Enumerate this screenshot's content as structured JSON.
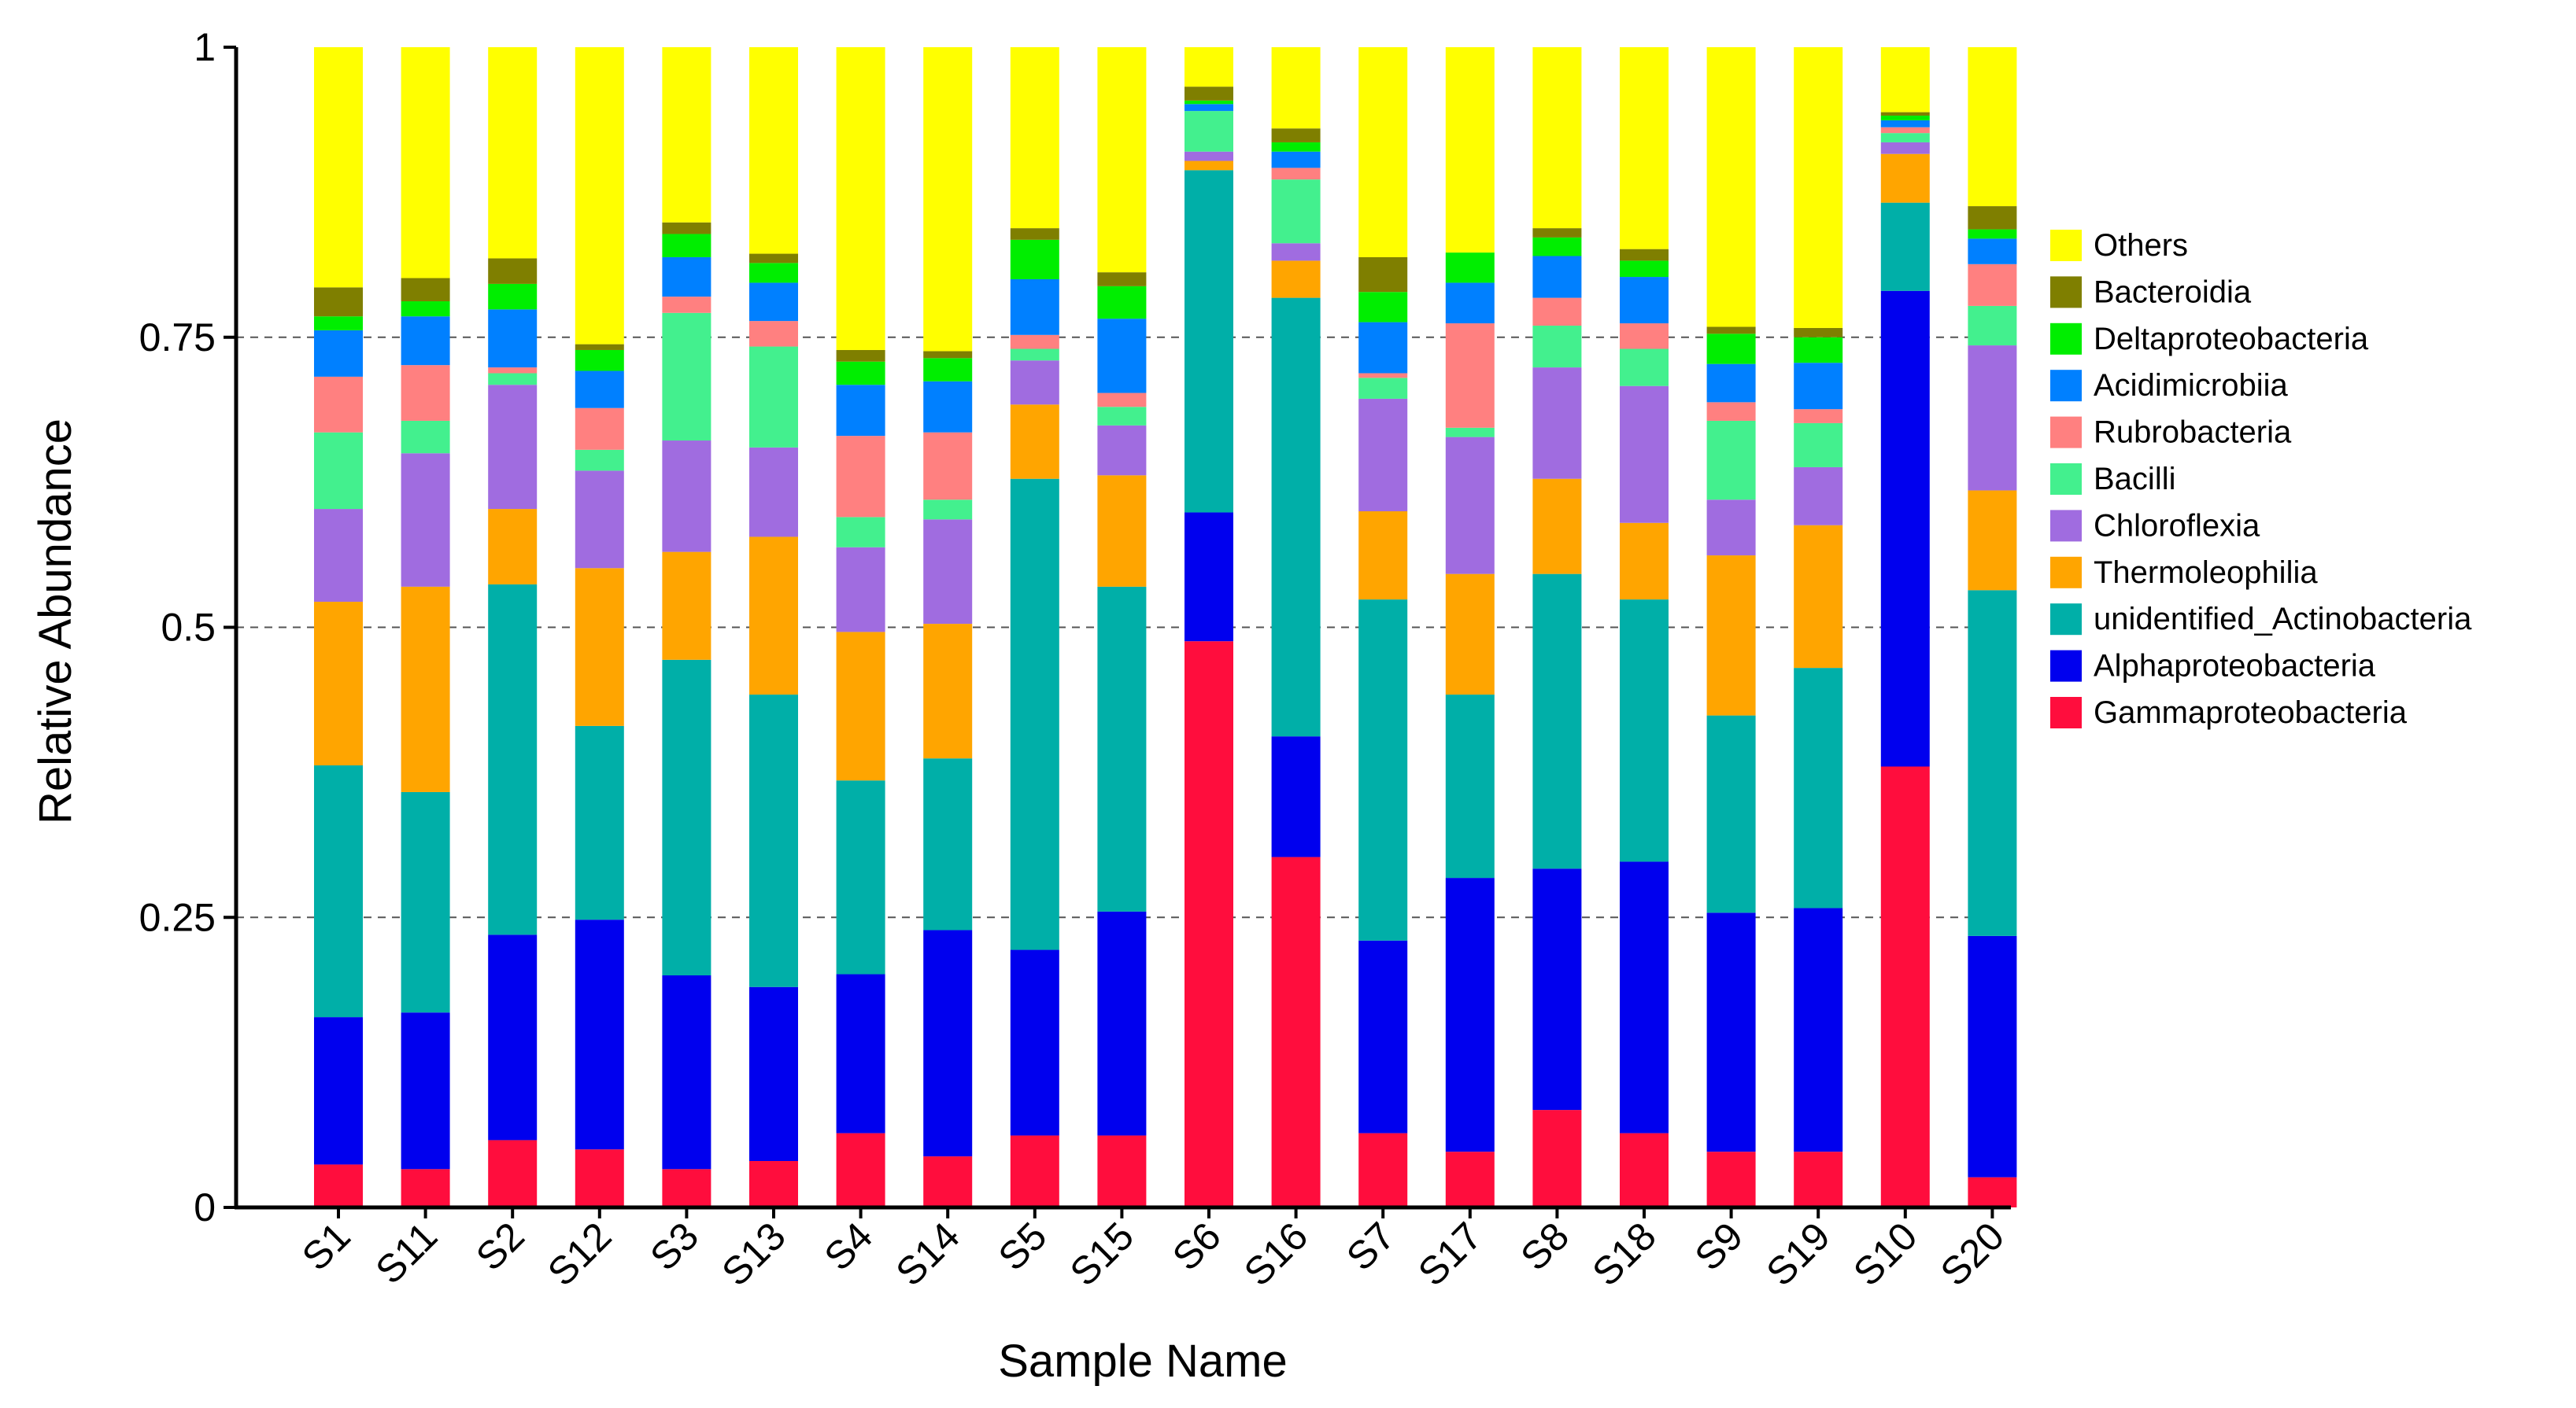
{
  "chart_data": {
    "type": "bar",
    "stacked": true,
    "title": "",
    "xlabel": "Sample Name",
    "ylabel": "Relative Abundance",
    "ylim": [
      0,
      1
    ],
    "yticks": [
      0,
      0.25,
      0.5,
      0.75,
      1
    ],
    "ytick_labels": [
      "0",
      "0.25",
      "0.5",
      "0.75",
      "1"
    ],
    "grid": "horizontal dashed at 0.25, 0.5, 0.75",
    "legend_position": "right",
    "categories": [
      "S1",
      "S11",
      "S2",
      "S12",
      "S3",
      "S13",
      "S4",
      "S14",
      "S5",
      "S15",
      "S6",
      "S16",
      "S7",
      "S17",
      "S8",
      "S18",
      "S9",
      "S19",
      "S10",
      "S20"
    ],
    "series": [
      {
        "name": "Gammaproteobacteria",
        "color": "#FF0D3D",
        "values": [
          0.037,
          0.033,
          0.058,
          0.05,
          0.033,
          0.04,
          0.064,
          0.044,
          0.062,
          0.062,
          0.488,
          0.302,
          0.064,
          0.048,
          0.084,
          0.064,
          0.048,
          0.048,
          0.38,
          0.026
        ]
      },
      {
        "name": "Alphaproteobacteria",
        "color": "#0000EE",
        "values": [
          0.127,
          0.135,
          0.177,
          0.198,
          0.167,
          0.15,
          0.137,
          0.195,
          0.16,
          0.193,
          0.111,
          0.104,
          0.166,
          0.236,
          0.208,
          0.234,
          0.206,
          0.21,
          0.41,
          0.208
        ]
      },
      {
        "name": "unidentified_Actinobacteria",
        "color": "#00AFA8",
        "values": [
          0.217,
          0.19,
          0.302,
          0.167,
          0.272,
          0.252,
          0.167,
          0.148,
          0.406,
          0.28,
          0.295,
          0.378,
          0.294,
          0.158,
          0.254,
          0.226,
          0.17,
          0.207,
          0.076,
          0.298
        ]
      },
      {
        "name": "Thermoleophilia",
        "color": "#FFA500",
        "values": [
          0.141,
          0.177,
          0.065,
          0.136,
          0.093,
          0.136,
          0.128,
          0.116,
          0.064,
          0.096,
          0.008,
          0.032,
          0.076,
          0.104,
          0.082,
          0.066,
          0.138,
          0.123,
          0.042,
          0.086
        ]
      },
      {
        "name": "Chloroflexia",
        "color": "#A06CE0",
        "values": [
          0.08,
          0.115,
          0.107,
          0.084,
          0.096,
          0.077,
          0.073,
          0.09,
          0.038,
          0.043,
          0.008,
          0.015,
          0.097,
          0.118,
          0.096,
          0.118,
          0.048,
          0.05,
          0.01,
          0.125
        ]
      },
      {
        "name": "Bacilli",
        "color": "#43F08E",
        "values": [
          0.066,
          0.028,
          0.01,
          0.018,
          0.11,
          0.087,
          0.026,
          0.017,
          0.01,
          0.016,
          0.035,
          0.055,
          0.018,
          0.008,
          0.036,
          0.032,
          0.068,
          0.038,
          0.008,
          0.034
        ]
      },
      {
        "name": "Rubrobacteria",
        "color": "#FF8080",
        "values": [
          0.048,
          0.048,
          0.005,
          0.036,
          0.014,
          0.022,
          0.07,
          0.058,
          0.012,
          0.012,
          0.0,
          0.01,
          0.004,
          0.09,
          0.024,
          0.022,
          0.016,
          0.012,
          0.005,
          0.036
        ]
      },
      {
        "name": "Acidimicrobiia",
        "color": "#0080FF",
        "values": [
          0.04,
          0.042,
          0.05,
          0.032,
          0.034,
          0.033,
          0.044,
          0.044,
          0.048,
          0.064,
          0.006,
          0.014,
          0.044,
          0.035,
          0.036,
          0.04,
          0.033,
          0.04,
          0.006,
          0.022
        ]
      },
      {
        "name": "Deltaproteobacteria",
        "color": "#00EE00",
        "values": [
          0.012,
          0.013,
          0.022,
          0.018,
          0.02,
          0.017,
          0.02,
          0.02,
          0.034,
          0.028,
          0.003,
          0.008,
          0.026,
          0.026,
          0.016,
          0.014,
          0.026,
          0.022,
          0.004,
          0.008
        ]
      },
      {
        "name": "Bacteroidia",
        "color": "#7F7F00",
        "values": [
          0.025,
          0.02,
          0.022,
          0.005,
          0.01,
          0.008,
          0.01,
          0.006,
          0.01,
          0.012,
          0.012,
          0.012,
          0.03,
          0.0,
          0.008,
          0.01,
          0.006,
          0.008,
          0.003,
          0.02
        ]
      },
      {
        "name": "Others",
        "color": "#FFFF00",
        "values": [
          0.207,
          0.199,
          0.182,
          0.256,
          0.151,
          0.178,
          0.261,
          0.262,
          0.156,
          0.194,
          0.034,
          0.07,
          0.181,
          0.177,
          0.16,
          0.174,
          0.241,
          0.242,
          0.056,
          0.137
        ]
      }
    ]
  }
}
